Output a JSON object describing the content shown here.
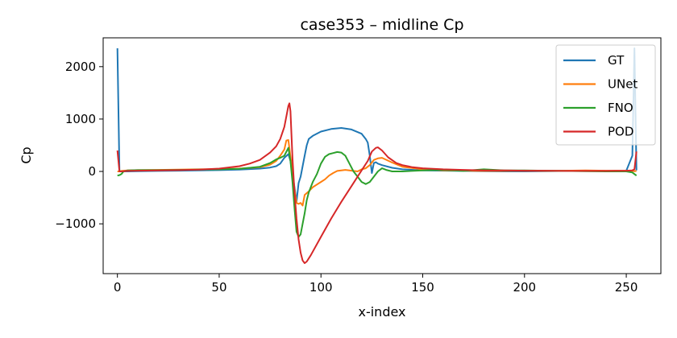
{
  "chart_data": {
    "type": "line",
    "title": "case353 – midline Cp",
    "xlabel": "x-index",
    "ylabel": "Cp",
    "xlim": [
      -7,
      267
    ],
    "ylim": [
      -1950,
      2550
    ],
    "x_ticks": [
      0,
      50,
      100,
      150,
      200,
      250
    ],
    "y_ticks": [
      -1000,
      0,
      1000,
      2000
    ],
    "x_tick_labels": [
      "0",
      "50",
      "100",
      "150",
      "200",
      "250"
    ],
    "y_tick_labels": [
      "−1000",
      "0",
      "1000",
      "2000"
    ],
    "grid": false,
    "legend_position": "top-right",
    "series": [
      {
        "name": "GT",
        "color": "#1f77b4",
        "x": [
          0,
          1,
          2,
          5,
          10,
          20,
          30,
          40,
          50,
          60,
          70,
          75,
          78,
          80,
          82,
          84,
          85,
          86,
          87,
          88,
          89,
          90,
          91,
          92,
          93,
          94,
          96,
          100,
          105,
          110,
          115,
          120,
          122,
          123,
          124,
          125,
          126,
          127,
          128,
          130,
          135,
          140,
          150,
          160,
          170,
          180,
          190,
          200,
          210,
          220,
          230,
          240,
          250,
          253,
          254,
          255
        ],
        "y": [
          2350,
          10,
          0,
          0,
          5,
          10,
          15,
          20,
          25,
          35,
          55,
          75,
          100,
          150,
          260,
          330,
          200,
          -50,
          -300,
          -580,
          -220,
          -100,
          100,
          300,
          500,
          620,
          680,
          760,
          810,
          830,
          800,
          720,
          620,
          550,
          300,
          -30,
          160,
          175,
          150,
          120,
          70,
          40,
          20,
          15,
          10,
          5,
          0,
          0,
          5,
          10,
          15,
          10,
          15,
          300,
          2350,
          20
        ]
      },
      {
        "name": "UNet",
        "color": "#ff7f0e",
        "x": [
          0,
          1,
          2,
          5,
          10,
          20,
          30,
          40,
          50,
          60,
          70,
          75,
          78,
          80,
          82,
          83,
          84,
          85,
          86,
          87,
          88,
          89,
          90,
          91,
          92,
          94,
          96,
          98,
          100,
          102,
          104,
          106,
          108,
          110,
          112,
          114,
          116,
          118,
          120,
          122,
          124,
          126,
          128,
          130,
          135,
          140,
          150,
          160,
          170,
          180,
          190,
          200,
          210,
          220,
          230,
          240,
          250,
          253,
          254,
          255
        ],
        "y": [
          0,
          0,
          10,
          20,
          25,
          30,
          35,
          40,
          45,
          55,
          80,
          130,
          200,
          300,
          420,
          590,
          600,
          280,
          0,
          -350,
          -600,
          -620,
          -600,
          -650,
          -450,
          -380,
          -300,
          -250,
          -200,
          -150,
          -80,
          -30,
          10,
          20,
          30,
          20,
          10,
          0,
          40,
          60,
          120,
          220,
          250,
          260,
          170,
          90,
          40,
          20,
          15,
          10,
          10,
          15,
          10,
          15,
          20,
          15,
          15,
          10,
          5,
          10
        ]
      },
      {
        "name": "FNO",
        "color": "#2ca02c",
        "x": [
          0,
          1,
          2,
          3,
          5,
          10,
          20,
          30,
          40,
          50,
          60,
          70,
          75,
          78,
          80,
          82,
          84,
          85,
          86,
          87,
          88,
          89,
          90,
          91,
          92,
          93,
          94,
          96,
          98,
          100,
          102,
          104,
          106,
          108,
          110,
          112,
          114,
          116,
          118,
          120,
          122,
          124,
          126,
          128,
          130,
          132,
          135,
          140,
          150,
          160,
          170,
          180,
          190,
          200,
          210,
          220,
          230,
          240,
          250,
          253,
          254,
          255
        ],
        "y": [
          -80,
          -70,
          -50,
          0,
          20,
          25,
          25,
          30,
          35,
          40,
          50,
          90,
          160,
          230,
          260,
          300,
          450,
          200,
          -200,
          -700,
          -1150,
          -1250,
          -1200,
          -1000,
          -800,
          -550,
          -400,
          -200,
          -50,
          150,
          280,
          330,
          350,
          370,
          360,
          300,
          150,
          0,
          -100,
          -200,
          -240,
          -200,
          -100,
          0,
          60,
          30,
          0,
          0,
          20,
          30,
          10,
          40,
          20,
          20,
          15,
          10,
          5,
          0,
          0,
          -20,
          -50,
          -80
        ]
      },
      {
        "name": "POD",
        "color": "#d62728",
        "x": [
          0,
          1,
          2,
          5,
          10,
          20,
          30,
          40,
          50,
          60,
          65,
          70,
          75,
          78,
          80,
          82,
          83,
          84,
          84.5,
          85,
          86,
          87,
          88,
          89,
          90,
          91,
          92,
          93,
          95,
          100,
          105,
          110,
          115,
          120,
          123,
          125,
          127,
          128,
          130,
          133,
          137,
          140,
          145,
          150,
          160,
          170,
          180,
          190,
          200,
          210,
          220,
          230,
          240,
          250,
          253,
          254,
          255
        ],
        "y": [
          400,
          0,
          0,
          10,
          15,
          20,
          25,
          35,
          55,
          100,
          150,
          220,
          360,
          480,
          620,
          850,
          1050,
          1250,
          1300,
          1150,
          250,
          -400,
          -900,
          -1300,
          -1550,
          -1700,
          -1750,
          -1720,
          -1600,
          -1250,
          -900,
          -580,
          -280,
          20,
          200,
          380,
          450,
          460,
          400,
          270,
          160,
          120,
          80,
          60,
          40,
          30,
          20,
          20,
          15,
          15,
          10,
          10,
          10,
          15,
          20,
          40,
          380
        ]
      }
    ]
  }
}
